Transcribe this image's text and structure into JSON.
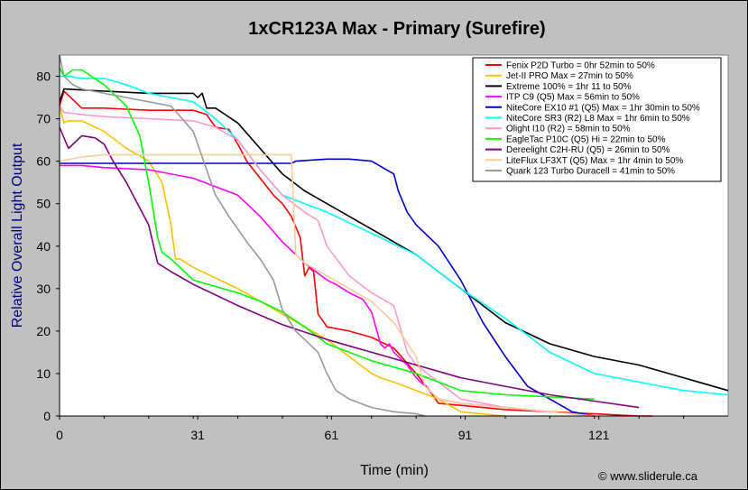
{
  "chart_data": {
    "type": "line",
    "title": "1xCR123A Max - Primary (Surefire)",
    "xlabel": "Time (min)",
    "ylabel": "Relative Overall Light Output",
    "xlim": [
      0,
      150
    ],
    "ylim": [
      0,
      85
    ],
    "xticks": [
      0,
      31,
      61,
      91,
      121
    ],
    "yticks": [
      0,
      10,
      20,
      30,
      40,
      50,
      60,
      70,
      80
    ],
    "grid": false,
    "legend": "top-right",
    "credit": "© www.sliderule.ca",
    "series": [
      {
        "name": "Fenix P2D Turbo = 0hr 52min to 50%",
        "color": "#ff0000",
        "x": [
          0,
          1,
          5,
          10,
          20,
          30,
          33,
          35,
          38,
          40,
          42,
          45,
          48,
          50,
          52,
          54,
          55,
          56,
          57,
          58,
          60,
          65,
          70,
          75,
          80,
          83,
          85,
          90,
          95,
          100,
          110,
          120,
          130,
          133
        ],
        "y": [
          73,
          76.5,
          72.5,
          72.5,
          72,
          72,
          71,
          68,
          67.5,
          64,
          60,
          56,
          52,
          50,
          47,
          42,
          33,
          35,
          34,
          24,
          21,
          20,
          18.5,
          16,
          10,
          6,
          3,
          2.5,
          2,
          1.5,
          1,
          0.5,
          0,
          0
        ]
      },
      {
        "name": "Jet-II PRO Max = 27min to 50%",
        "color": "#ffc000",
        "x": [
          0,
          1,
          2,
          5,
          10,
          15,
          20,
          23,
          25,
          26,
          27,
          30,
          35,
          40,
          45,
          50,
          55,
          60,
          65,
          70,
          72,
          75,
          80,
          85,
          90,
          100
        ],
        "y": [
          73,
          69,
          69.5,
          69.5,
          67,
          63,
          60,
          55,
          45,
          37,
          37,
          35,
          32.5,
          30,
          27,
          24,
          21,
          18,
          14,
          10,
          9,
          8,
          6,
          4,
          1,
          0
        ]
      },
      {
        "name": "Extreme 100% = 1hr 11 to 50%",
        "color": "#000000",
        "x": [
          0,
          1,
          10,
          20,
          30,
          31,
          32,
          33,
          35,
          40,
          45,
          50,
          55,
          60,
          70,
          80,
          90,
          95,
          100,
          110,
          120,
          130,
          140,
          150
        ],
        "y": [
          74,
          77,
          76.5,
          76,
          76,
          75,
          76,
          72.5,
          72.5,
          69,
          63,
          57,
          53,
          50,
          44,
          38,
          30,
          26,
          22,
          17,
          14,
          12,
          9,
          6
        ]
      },
      {
        "name": "ITP C9 (Q5) Max = 56min to 50%",
        "color": "#ff00ff",
        "x": [
          0,
          5,
          10,
          20,
          30,
          35,
          40,
          45,
          50,
          55,
          60,
          62,
          65,
          68,
          70,
          72,
          73,
          74,
          75,
          78,
          80,
          85,
          90,
          95,
          100,
          110
        ],
        "y": [
          59,
          59,
          58.5,
          58,
          56,
          54,
          52,
          47,
          41,
          36,
          32,
          31,
          29,
          27.5,
          24.5,
          17,
          16,
          17,
          15,
          12,
          9,
          4,
          3,
          2.5,
          2,
          1
        ]
      },
      {
        "name": "NiteCore EX10 #1 (Q5) Max = 1hr 30min to 50%",
        "color": "#0000cc",
        "x": [
          0,
          10,
          20,
          30,
          40,
          50,
          52,
          53,
          60,
          65,
          70,
          75,
          76,
          78,
          80,
          85,
          90,
          95,
          100,
          105,
          110,
          115,
          120
        ],
        "y": [
          59.5,
          59.5,
          59.5,
          59.5,
          59.5,
          59.5,
          59.5,
          60,
          60.5,
          60.5,
          60,
          57,
          53,
          48,
          45,
          40,
          32,
          22,
          14,
          7,
          4,
          1,
          0
        ]
      },
      {
        "name": "NiteCore SR3 (R2) L8 Max = 1hr 6min to 50%",
        "color": "#00ffff",
        "x": [
          0,
          2,
          5,
          10,
          15,
          20,
          25,
          30,
          35,
          40,
          45,
          50,
          60,
          70,
          80,
          90,
          100,
          110,
          120,
          130,
          140,
          150
        ],
        "y": [
          80,
          80,
          79.5,
          79.5,
          78,
          76,
          75,
          74,
          70,
          65,
          58,
          52,
          48,
          43,
          38,
          30,
          23,
          15,
          10,
          8,
          6,
          5
        ]
      },
      {
        "name": "Olight I10 (R2) = 58min to 50%",
        "color": "#ff99cc",
        "x": [
          0,
          1,
          5,
          10,
          20,
          30,
          35,
          40,
          45,
          50,
          55,
          58,
          60,
          65,
          70,
          75,
          78,
          80,
          85,
          90,
          100,
          110
        ],
        "y": [
          73,
          71.5,
          71,
          70.5,
          70,
          69.5,
          68,
          65,
          58,
          52,
          48,
          46,
          40,
          33,
          29,
          26,
          15,
          12,
          8,
          4,
          2,
          1
        ]
      },
      {
        "name": "EagleTac P10C (Q5) Hi = 22min to 50%",
        "color": "#00ff00",
        "x": [
          0,
          1,
          3,
          5,
          10,
          15,
          18,
          20,
          22,
          23,
          25,
          30,
          35,
          40,
          45,
          50,
          55,
          60,
          70,
          80,
          85,
          90,
          100,
          110,
          120
        ],
        "y": [
          82,
          80,
          81.5,
          81.5,
          78,
          73,
          66,
          55,
          42,
          38.5,
          37,
          32,
          30.5,
          29,
          27,
          24.5,
          21,
          17,
          13,
          10,
          8,
          6,
          5,
          4.5,
          4
        ]
      },
      {
        "name": "Dereelight C2H-RU (Q5) = 26min to 50%",
        "color": "#800080",
        "x": [
          0,
          2,
          5,
          8,
          10,
          12,
          15,
          20,
          22,
          25,
          30,
          40,
          50,
          60,
          70,
          80,
          90,
          100,
          110,
          120,
          130
        ],
        "y": [
          68,
          63,
          66,
          65.5,
          64,
          60,
          55,
          45,
          36,
          34,
          31,
          26,
          21.5,
          18,
          15,
          12,
          9,
          7,
          5,
          3.5,
          2
        ]
      },
      {
        "name": "LiteFlux LF3XT (Q5) Max = 1hr 4min to 50%",
        "color": "#ffcc99",
        "x": [
          0,
          5,
          10,
          20,
          30,
          40,
          50,
          51,
          52,
          53,
          55,
          60,
          65,
          70,
          75,
          80,
          82,
          85,
          90,
          100,
          110,
          120
        ],
        "y": [
          60,
          61,
          61.5,
          61.5,
          61.5,
          61.5,
          61.5,
          61.5,
          61.5,
          38,
          36,
          33,
          30,
          27,
          22,
          14,
          7,
          4,
          3,
          2,
          1,
          0
        ]
      },
      {
        "name": "Quark 123 Turbo Duracell = 41min to 50%",
        "color": "#999999",
        "x": [
          0,
          1,
          3,
          5,
          10,
          15,
          20,
          25,
          30,
          33,
          35,
          38,
          40,
          42,
          45,
          48,
          50,
          53,
          55,
          58,
          60,
          62,
          65,
          70,
          75,
          80,
          82
        ],
        "y": [
          85,
          80,
          78,
          77,
          76,
          75,
          74,
          73,
          67,
          58,
          52,
          47,
          44,
          41,
          37,
          32,
          25,
          20,
          18,
          15,
          10,
          6,
          4,
          2,
          1,
          0.5,
          0
        ]
      }
    ]
  }
}
